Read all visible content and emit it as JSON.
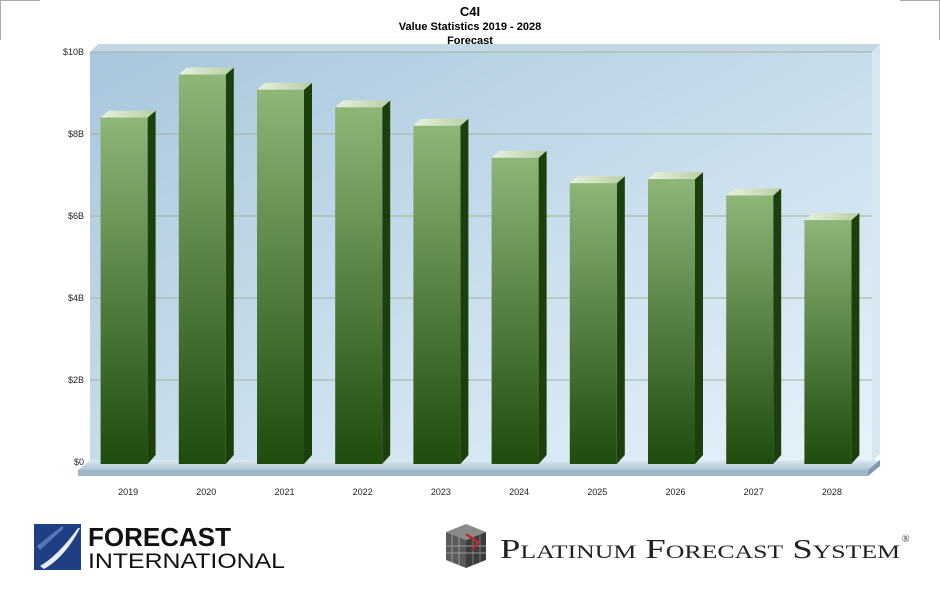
{
  "chart_data": {
    "type": "bar",
    "title": "C4I",
    "subtitle": "Value Statistics 2019 - 2028",
    "subtitle2": "Forecast",
    "categories": [
      "2019",
      "2020",
      "2021",
      "2022",
      "2023",
      "2024",
      "2025",
      "2026",
      "2027",
      "2028"
    ],
    "values": [
      8.4,
      9.45,
      9.08,
      8.65,
      8.2,
      7.42,
      6.8,
      6.9,
      6.5,
      5.9
    ],
    "ylim": [
      0,
      10
    ],
    "yticks": [
      0,
      2,
      4,
      6,
      8,
      10
    ],
    "ytick_labels": [
      "$0",
      "$2B",
      "$4B",
      "$6B",
      "$8B",
      "$10B"
    ],
    "grid": true,
    "bar_color": "#4f8a35",
    "background_color": "#c9e0ee"
  },
  "logos": {
    "left": "FORECAST INTERNATIONAL",
    "left_line1": "FORECAST",
    "left_line2": "INTERNATIONAL",
    "right": "Platinum Forecast System",
    "right_mark": "®"
  }
}
